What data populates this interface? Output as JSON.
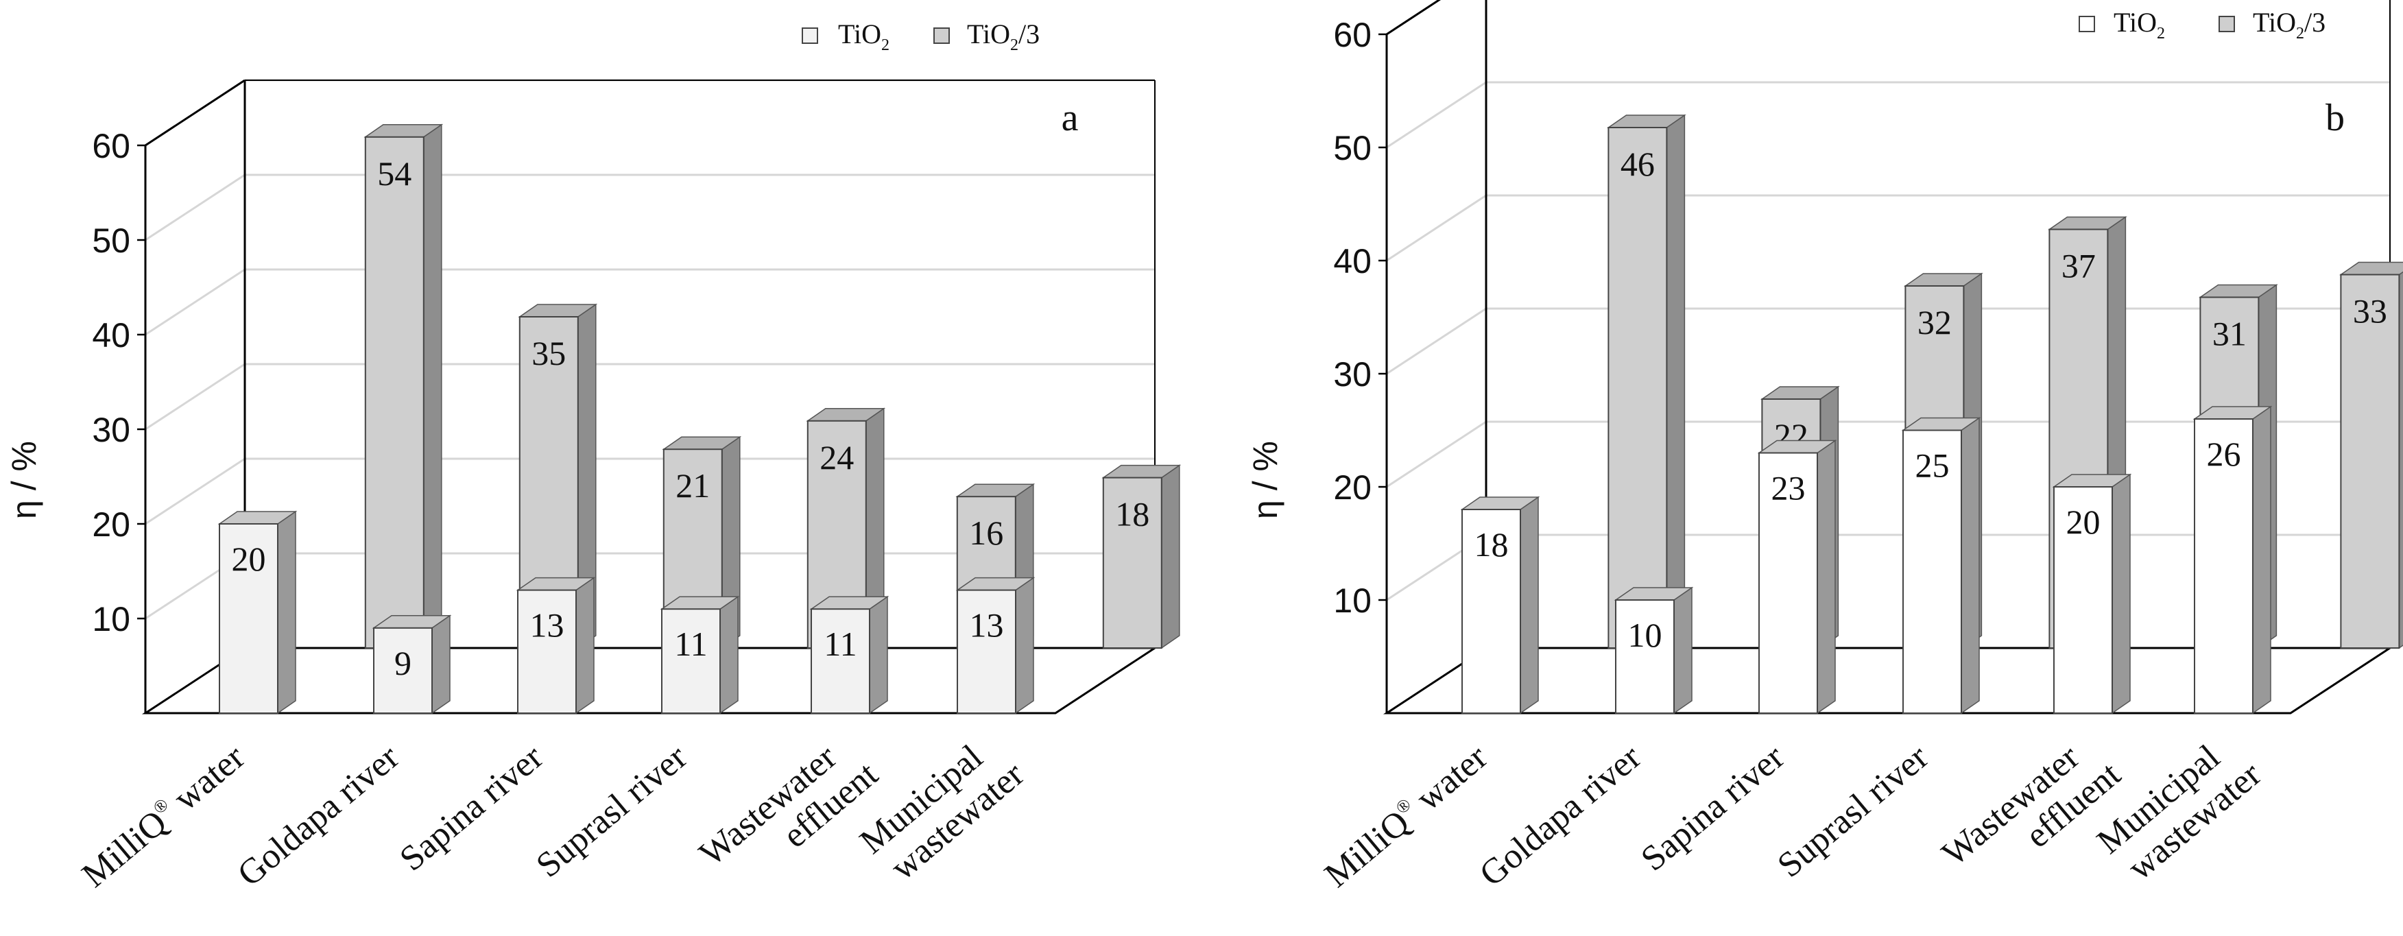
{
  "colors": {
    "tio2_panel_a": "#f2f2f2",
    "tio2_panel_b": "#ffffff",
    "tio2_3_front": "#cfcfcf",
    "tio2_3_side": "#8e8e8e",
    "tio2_3_top": "#b3b3b3",
    "axis": "#000000",
    "gridline": "#d6d6d6"
  },
  "chart_data": [
    {
      "type": "bar",
      "panel_label": "a",
      "title": "",
      "xlabel": "",
      "ylabel": "η / %",
      "ylim": [
        0,
        60
      ],
      "yticks": [
        "10",
        "20",
        "30",
        "40",
        "50",
        "60"
      ],
      "grid": true,
      "legend": {
        "position": "top-right",
        "entries": [
          {
            "label": "TiO",
            "sub": "2",
            "suffix": ""
          },
          {
            "label": "TiO",
            "sub": "2",
            "suffix": "/3"
          }
        ]
      },
      "categories": [
        {
          "line1": "MilliQ",
          "sup": "®",
          "rest": " water",
          "line2": ""
        },
        {
          "line1": "Goldapa river",
          "sup": "",
          "rest": "",
          "line2": ""
        },
        {
          "line1": "Sapina river",
          "sup": "",
          "rest": "",
          "line2": ""
        },
        {
          "line1": "Suprasl river",
          "sup": "",
          "rest": "",
          "line2": ""
        },
        {
          "line1": "Wastewater",
          "sup": "",
          "rest": "",
          "line2": "effluent"
        },
        {
          "line1": "Municipal",
          "sup": "",
          "rest": "",
          "line2": "wastewater"
        }
      ],
      "series": [
        {
          "name": "TiO2",
          "values": [
            20,
            9,
            13,
            11,
            11,
            13
          ]
        },
        {
          "name": "TiO2/3",
          "values": [
            54,
            35,
            21,
            24,
            16,
            18
          ]
        }
      ]
    },
    {
      "type": "bar",
      "panel_label": "b",
      "title": "",
      "xlabel": "",
      "ylabel": "η / %",
      "ylim": [
        0,
        60
      ],
      "yticks": [
        "10",
        "20",
        "30",
        "40",
        "50",
        "60"
      ],
      "grid": true,
      "legend": {
        "position": "top-right",
        "entries": [
          {
            "label": "TiO",
            "sub": "2",
            "suffix": ""
          },
          {
            "label": "TiO",
            "sub": "2",
            "suffix": "/3"
          }
        ]
      },
      "categories": [
        {
          "line1": "MilliQ",
          "sup": "®",
          "rest": " water",
          "line2": ""
        },
        {
          "line1": "Goldapa river",
          "sup": "",
          "rest": "",
          "line2": ""
        },
        {
          "line1": "Sapina river",
          "sup": "",
          "rest": "",
          "line2": ""
        },
        {
          "line1": "Suprasl river",
          "sup": "",
          "rest": "",
          "line2": ""
        },
        {
          "line1": "Wastewater",
          "sup": "",
          "rest": "",
          "line2": "effluent"
        },
        {
          "line1": "Municipal",
          "sup": "",
          "rest": "",
          "line2": "wastewater"
        }
      ],
      "series": [
        {
          "name": "TiO2",
          "values": [
            18,
            10,
            23,
            25,
            20,
            26
          ]
        },
        {
          "name": "TiO2/3",
          "values": [
            46,
            22,
            32,
            37,
            31,
            33
          ]
        }
      ]
    }
  ]
}
